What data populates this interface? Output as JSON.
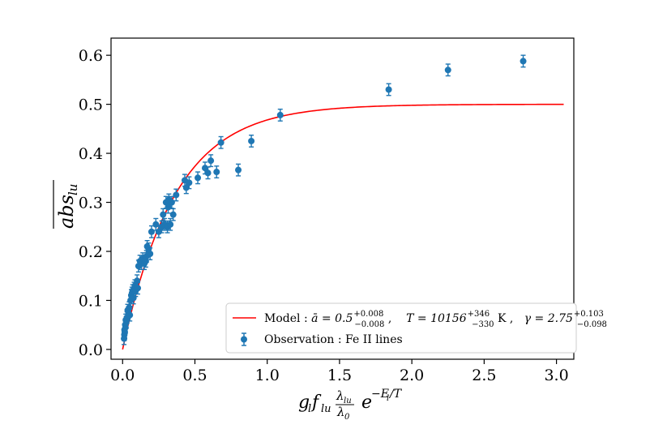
{
  "chart_data": {
    "type": "scatter",
    "title": "",
    "xlabel": "g_l f_lu (λ_lu/λ_0) e^(−E_l/T)",
    "ylabel": "abs_lu (mean)",
    "xlim": [
      -0.08,
      3.12
    ],
    "ylim": [
      -0.02,
      0.635
    ],
    "grid": false,
    "x_ticks": [
      "0.0",
      "0.5",
      "1.0",
      "1.5",
      "2.0",
      "2.5",
      "3.0"
    ],
    "x_tick_values": [
      0,
      0.5,
      1.0,
      1.5,
      2.0,
      2.5,
      3.0
    ],
    "y_ticks": [
      "0.0",
      "0.1",
      "0.2",
      "0.3",
      "0.4",
      "0.5",
      "0.6"
    ],
    "y_tick_values": [
      0,
      0.1,
      0.2,
      0.3,
      0.4,
      0.5,
      0.6
    ],
    "model": {
      "name": "Model",
      "color": "#ff0000",
      "a": 0.5,
      "gamma": 2.75,
      "x_range": [
        0,
        3.05
      ],
      "label_prefix": "Model : ",
      "a_label": "ā = 0.5",
      "a_err_up": "+0.008",
      "a_err_down": "−0.008",
      "T_label": "T = 10156",
      "T_err_up": "+346",
      "T_err_down": "−330",
      "T_unit": " K ,",
      "gamma_label": "γ = 2.75",
      "gamma_err_up": "+0.103",
      "gamma_err_down": "−0.098"
    },
    "observations": {
      "name": "Observation : Fe II lines",
      "color": "#1f77b4",
      "yerr": 0.012,
      "points": [
        {
          "x": 0.01,
          "y": 0.022
        },
        {
          "x": 0.012,
          "y": 0.03
        },
        {
          "x": 0.013,
          "y": 0.04
        },
        {
          "x": 0.015,
          "y": 0.036
        },
        {
          "x": 0.018,
          "y": 0.05
        },
        {
          "x": 0.02,
          "y": 0.045
        },
        {
          "x": 0.022,
          "y": 0.06
        },
        {
          "x": 0.025,
          "y": 0.055
        },
        {
          "x": 0.03,
          "y": 0.065
        },
        {
          "x": 0.035,
          "y": 0.08
        },
        {
          "x": 0.04,
          "y": 0.075
        },
        {
          "x": 0.045,
          "y": 0.085
        },
        {
          "x": 0.05,
          "y": 0.07
        },
        {
          "x": 0.055,
          "y": 0.1
        },
        {
          "x": 0.06,
          "y": 0.11
        },
        {
          "x": 0.065,
          "y": 0.115
        },
        {
          "x": 0.07,
          "y": 0.12
        },
        {
          "x": 0.075,
          "y": 0.105
        },
        {
          "x": 0.08,
          "y": 0.125
        },
        {
          "x": 0.085,
          "y": 0.13
        },
        {
          "x": 0.09,
          "y": 0.12
        },
        {
          "x": 0.1,
          "y": 0.14
        },
        {
          "x": 0.105,
          "y": 0.125
        },
        {
          "x": 0.11,
          "y": 0.17
        },
        {
          "x": 0.12,
          "y": 0.18
        },
        {
          "x": 0.13,
          "y": 0.175
        },
        {
          "x": 0.14,
          "y": 0.185
        },
        {
          "x": 0.15,
          "y": 0.175
        },
        {
          "x": 0.16,
          "y": 0.18
        },
        {
          "x": 0.165,
          "y": 0.19
        },
        {
          "x": 0.17,
          "y": 0.21
        },
        {
          "x": 0.18,
          "y": 0.205
        },
        {
          "x": 0.19,
          "y": 0.195
        },
        {
          "x": 0.2,
          "y": 0.24
        },
        {
          "x": 0.23,
          "y": 0.255
        },
        {
          "x": 0.25,
          "y": 0.24
        },
        {
          "x": 0.27,
          "y": 0.25
        },
        {
          "x": 0.28,
          "y": 0.275
        },
        {
          "x": 0.29,
          "y": 0.255
        },
        {
          "x": 0.3,
          "y": 0.3
        },
        {
          "x": 0.31,
          "y": 0.25
        },
        {
          "x": 0.315,
          "y": 0.29
        },
        {
          "x": 0.32,
          "y": 0.305
        },
        {
          "x": 0.33,
          "y": 0.255
        },
        {
          "x": 0.34,
          "y": 0.3
        },
        {
          "x": 0.35,
          "y": 0.275
        },
        {
          "x": 0.37,
          "y": 0.315
        },
        {
          "x": 0.43,
          "y": 0.345
        },
        {
          "x": 0.44,
          "y": 0.33
        },
        {
          "x": 0.46,
          "y": 0.34
        },
        {
          "x": 0.52,
          "y": 0.35
        },
        {
          "x": 0.57,
          "y": 0.37
        },
        {
          "x": 0.59,
          "y": 0.36
        },
        {
          "x": 0.61,
          "y": 0.385
        },
        {
          "x": 0.65,
          "y": 0.362
        },
        {
          "x": 0.68,
          "y": 0.422
        },
        {
          "x": 0.8,
          "y": 0.366
        },
        {
          "x": 0.89,
          "y": 0.425
        },
        {
          "x": 1.09,
          "y": 0.478
        },
        {
          "x": 1.84,
          "y": 0.53
        },
        {
          "x": 2.25,
          "y": 0.57
        },
        {
          "x": 2.77,
          "y": 0.588
        }
      ]
    }
  }
}
